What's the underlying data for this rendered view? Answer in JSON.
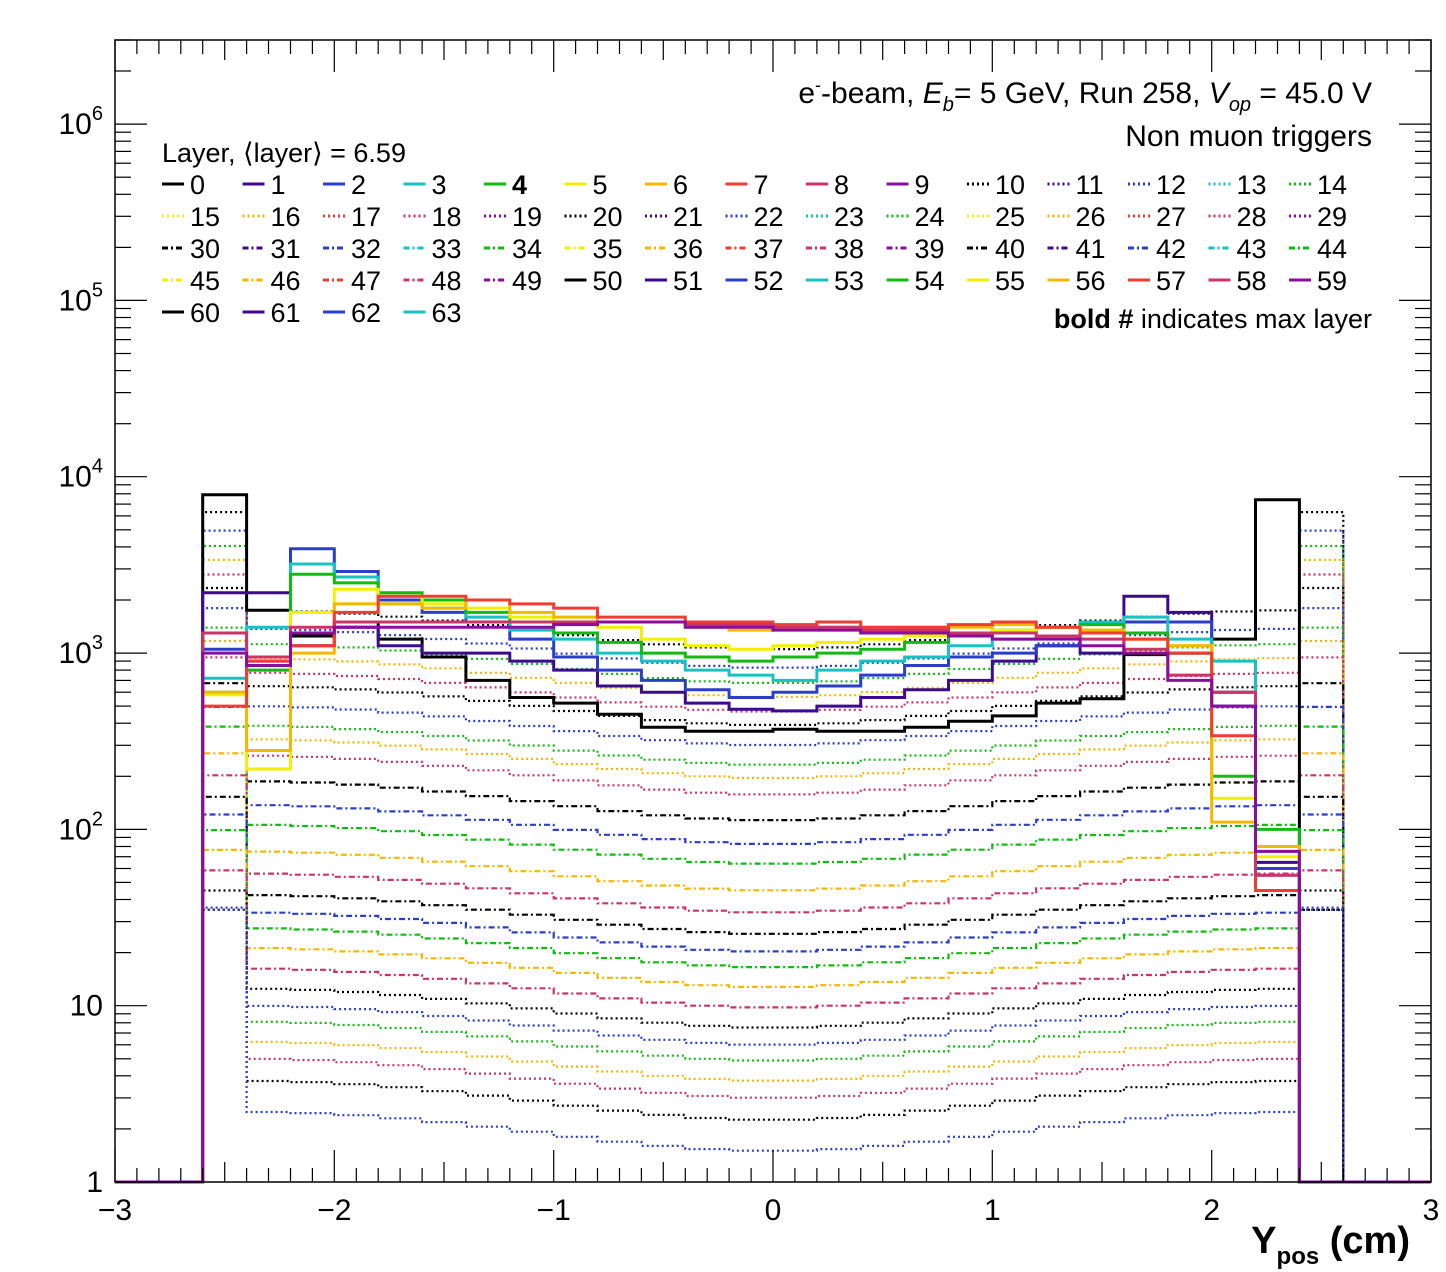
{
  "header": {
    "line1_parts": [
      "e",
      "-",
      "-beam, ",
      "E",
      "b",
      "= 5 GeV, Run 258, ",
      "V",
      "op",
      " = 45.0 V"
    ],
    "line2": "Non muon triggers",
    "note_bold": "bold #",
    "note_rest": " indicates max layer"
  },
  "legend": {
    "title": "Layer, ⟨layer⟩ = 6.59",
    "entries": [
      "0",
      "1",
      "2",
      "3",
      "4",
      "5",
      "6",
      "7",
      "8",
      "9",
      "10",
      "11",
      "12",
      "13",
      "14",
      "15",
      "16",
      "17",
      "18",
      "19",
      "20",
      "21",
      "22",
      "23",
      "24",
      "25",
      "26",
      "27",
      "28",
      "29",
      "30",
      "31",
      "32",
      "33",
      "34",
      "35",
      "36",
      "37",
      "38",
      "39",
      "40",
      "41",
      "42",
      "43",
      "44",
      "45",
      "46",
      "47",
      "48",
      "49",
      "50",
      "51",
      "52",
      "53",
      "54",
      "55",
      "56",
      "57",
      "58",
      "59",
      "60",
      "61",
      "62",
      "63"
    ],
    "bold_entry": "4"
  },
  "axes": {
    "x_label_main": "Y",
    "x_label_sub": "pos",
    "x_label_unit": " (cm)",
    "x_ticks": [
      "−3",
      "−2",
      "−1",
      "0",
      "1",
      "2",
      "3"
    ],
    "y_ticks": [
      {
        "base": "1",
        "exp": ""
      },
      {
        "base": "10",
        "exp": ""
      },
      {
        "base": "10",
        "exp": "2"
      },
      {
        "base": "10",
        "exp": "3"
      },
      {
        "base": "10",
        "exp": "4"
      },
      {
        "base": "10",
        "exp": "5"
      },
      {
        "base": "10",
        "exp": "6"
      }
    ]
  },
  "chart_data": {
    "type": "line",
    "xlim": [
      -3,
      3
    ],
    "ylim": [
      1,
      3000000
    ],
    "y_scale": "log",
    "grid": false,
    "legend_placement": "top-left",
    "bin_edges": [
      -3.0,
      -2.8,
      -2.6,
      -2.4,
      -2.2,
      -2.0,
      -1.8,
      -1.6,
      -1.4,
      -1.2,
      -1.0,
      -0.8,
      -0.6,
      -0.4,
      -0.2,
      0.0,
      0.2,
      0.4,
      0.6,
      0.8,
      1.0,
      1.2,
      1.4,
      1.6,
      1.8,
      2.0,
      2.2,
      2.4,
      2.6,
      2.8,
      3.0
    ],
    "colors": [
      "#000000",
      "#3b0a8f",
      "#2b3ec9",
      "#18c2c2",
      "#12bb12",
      "#f0f000",
      "#f5b800",
      "#f03c32",
      "#cc3366",
      "#8a0e9e"
    ],
    "series": [
      {
        "name": "0",
        "values": [
          1,
          1,
          7900,
          1750,
          1250,
          1500,
          1200,
          950,
          700,
          560,
          520,
          450,
          380,
          360,
          360,
          370,
          360,
          360,
          380,
          410,
          440,
          520,
          550,
          980,
          1000,
          1200,
          7400,
          1,
          1,
          1
        ]
      },
      {
        "name": "1",
        "values": [
          1,
          1,
          2200,
          2200,
          1100,
          1400,
          1100,
          1000,
          1000,
          900,
          800,
          650,
          600,
          520,
          480,
          470,
          500,
          560,
          620,
          700,
          900,
          1100,
          1000,
          2100,
          1700,
          600,
          65,
          1,
          1,
          1
        ]
      },
      {
        "name": "2",
        "values": [
          1,
          1,
          1050,
          900,
          3900,
          2900,
          2000,
          1700,
          1500,
          1200,
          950,
          800,
          700,
          620,
          560,
          600,
          650,
          750,
          850,
          950,
          1000,
          1100,
          1300,
          1500,
          1500,
          500,
          60,
          1,
          1,
          1
        ]
      },
      {
        "name": "3",
        "values": [
          1,
          1,
          720,
          1400,
          3200,
          2700,
          1900,
          1800,
          1600,
          1350,
          1200,
          1000,
          900,
          800,
          750,
          700,
          800,
          900,
          950,
          1100,
          1200,
          1400,
          1500,
          1600,
          1200,
          900,
          55,
          1,
          1,
          1
        ]
      },
      {
        "name": "4",
        "values": [
          1,
          1,
          600,
          800,
          2800,
          2500,
          2200,
          2000,
          1700,
          1500,
          1300,
          1150,
          1000,
          950,
          900,
          950,
          1000,
          1050,
          1150,
          1250,
          1350,
          1400,
          1450,
          1300,
          1000,
          200,
          100,
          1,
          1,
          1
        ]
      },
      {
        "name": "5",
        "values": [
          1,
          1,
          580,
          220,
          1700,
          2300,
          2100,
          1900,
          1800,
          1600,
          1500,
          1400,
          1200,
          1100,
          1050,
          1100,
          1150,
          1200,
          1250,
          1300,
          1350,
          1400,
          1350,
          1200,
          1100,
          150,
          70,
          1,
          1,
          1
        ]
      },
      {
        "name": "6",
        "values": [
          1,
          1,
          600,
          280,
          1000,
          1900,
          1900,
          1800,
          2000,
          1700,
          1600,
          1500,
          1500,
          1400,
          1350,
          1400,
          1400,
          1400,
          1400,
          1400,
          1450,
          1400,
          1350,
          1200,
          1100,
          110,
          80,
          1,
          1,
          1
        ]
      },
      {
        "name": "7",
        "values": [
          1,
          1,
          500,
          900,
          1100,
          1700,
          2100,
          2100,
          2000,
          1900,
          1800,
          1600,
          1600,
          1500,
          1500,
          1450,
          1500,
          1400,
          1400,
          1450,
          1500,
          1400,
          1300,
          1200,
          1000,
          340,
          45,
          1,
          1,
          1
        ]
      },
      {
        "name": "8",
        "values": [
          1,
          1,
          1300,
          950,
          1400,
          1500,
          1500,
          1500,
          1500,
          1500,
          1500,
          1500,
          1500,
          1450,
          1450,
          1400,
          1400,
          1350,
          1350,
          1300,
          1300,
          1250,
          1200,
          1050,
          750,
          600,
          55,
          1,
          1,
          1
        ]
      },
      {
        "name": "9",
        "values": [
          1,
          1,
          1000,
          850,
          1300,
          1400,
          1400,
          1400,
          1400,
          1400,
          1450,
          1500,
          1500,
          1400,
          1400,
          1350,
          1350,
          1300,
          1300,
          1250,
          1200,
          1200,
          1100,
          1000,
          700,
          500,
          75,
          1,
          1,
          1
        ]
      }
    ],
    "faint_series_note": "layers 10-63 drawn as dotted/dash-dot curves with lower counts",
    "faint_levels": [
      1400,
      1100,
      900,
      750,
      620,
      520,
      400,
      310,
      260,
      210,
      150,
      110,
      85,
      60,
      45,
      34,
      27,
      22,
      17,
      13,
      10,
      8,
      6.5,
      5,
      4,
      3,
      2
    ]
  }
}
